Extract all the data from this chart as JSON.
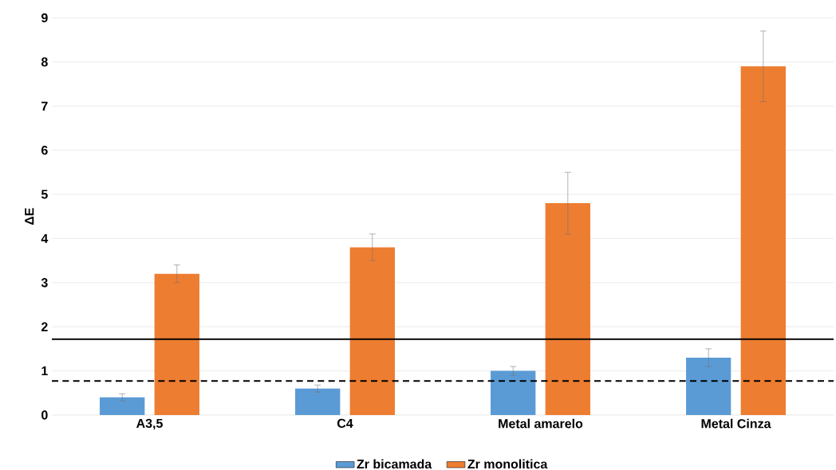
{
  "chart_data": {
    "type": "bar",
    "ylabel": "ΔE",
    "categories": [
      "A3,5",
      "C4",
      "Metal amarelo",
      "Metal Cinza"
    ],
    "series": [
      {
        "name": "Zr bicamada",
        "color": "#5b9bd5",
        "values": [
          0.4,
          0.6,
          1.0,
          1.3
        ],
        "errors": [
          0.08,
          0.08,
          0.1,
          0.2
        ]
      },
      {
        "name": "Zr monolitica",
        "color": "#ed7d31",
        "values": [
          3.2,
          3.8,
          4.8,
          7.9
        ],
        "errors": [
          0.2,
          0.3,
          0.7,
          0.8
        ]
      }
    ],
    "ylim": [
      0,
      9
    ],
    "yticks": [
      0,
      1,
      2,
      3,
      4,
      5,
      6,
      7,
      8,
      9
    ],
    "grid": "y",
    "legend": "bottom",
    "ref_lines": [
      {
        "axis": "y",
        "value": 1.72,
        "color": "#000000",
        "line_style": "solid"
      },
      {
        "axis": "y",
        "value": 0.77,
        "color": "#000000",
        "line_style": "dashed"
      }
    ]
  }
}
